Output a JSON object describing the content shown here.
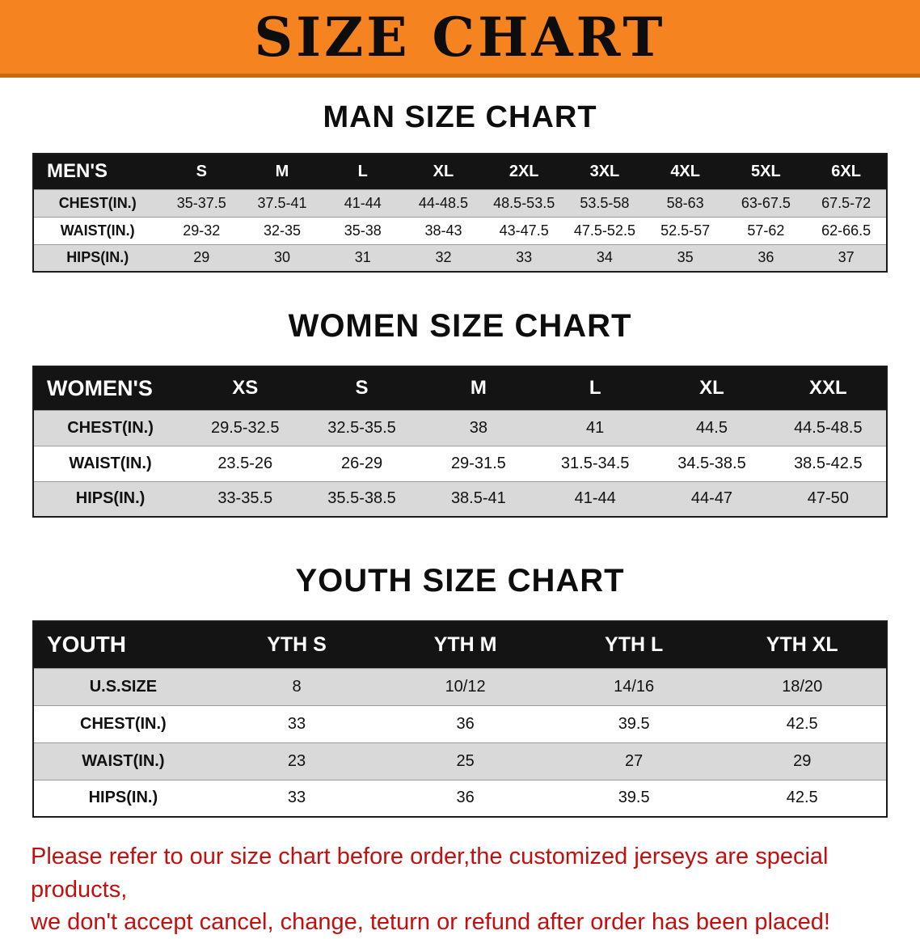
{
  "banner": {
    "title": "SIZE CHART"
  },
  "colors": {
    "banner_bg": "#F5831F",
    "banner_edge": "#C96A0F",
    "table_header_bg": "#141414",
    "row_alt_gray": "#D9D9D9",
    "note_red": "#C40F0F"
  },
  "sections": [
    {
      "id": "men",
      "heading": "MAN SIZE CHART",
      "table": {
        "label": "MEN'S",
        "columns": [
          "S",
          "M",
          "L",
          "XL",
          "2XL",
          "3XL",
          "4XL",
          "5XL",
          "6XL"
        ],
        "rows": [
          {
            "label": "CHEST(IN.)",
            "values": [
              "35-37.5",
              "37.5-41",
              "41-44",
              "44-48.5",
              "48.5-53.5",
              "53.5-58",
              "58-63",
              "63-67.5",
              "67.5-72"
            ]
          },
          {
            "label": "WAIST(IN.)",
            "values": [
              "29-32",
              "32-35",
              "35-38",
              "38-43",
              "43-47.5",
              "47.5-52.5",
              "52.5-57",
              "57-62",
              "62-66.5"
            ]
          },
          {
            "label": "HIPS(IN.)",
            "values": [
              "29",
              "30",
              "31",
              "32",
              "33",
              "34",
              "35",
              "36",
              "37"
            ]
          }
        ]
      }
    },
    {
      "id": "women",
      "heading": "WOMEN SIZE CHART",
      "table": {
        "label": "WOMEN'S",
        "columns": [
          "XS",
          "S",
          "M",
          "L",
          "XL",
          "XXL"
        ],
        "rows": [
          {
            "label": "CHEST(IN.)",
            "values": [
              "29.5-32.5",
              "32.5-35.5",
              "38",
              "41",
              "44.5",
              "44.5-48.5"
            ]
          },
          {
            "label": "WAIST(IN.)",
            "values": [
              "23.5-26",
              "26-29",
              "29-31.5",
              "31.5-34.5",
              "34.5-38.5",
              "38.5-42.5"
            ]
          },
          {
            "label": "HIPS(IN.)",
            "values": [
              "33-35.5",
              "35.5-38.5",
              "38.5-41",
              "41-44",
              "44-47",
              "47-50"
            ]
          }
        ]
      }
    },
    {
      "id": "youth",
      "heading": "YOUTH SIZE CHART",
      "table": {
        "label": "YOUTH",
        "columns": [
          "YTH S",
          "YTH M",
          "YTH L",
          "YTH XL"
        ],
        "rows": [
          {
            "label": "U.S.SIZE",
            "values": [
              "8",
              "10/12",
              "14/16",
              "18/20"
            ]
          },
          {
            "label": "CHEST(IN.)",
            "values": [
              "33",
              "36",
              "39.5",
              "42.5"
            ]
          },
          {
            "label": "WAIST(IN.)",
            "values": [
              "23",
              "25",
              "27",
              "29"
            ]
          },
          {
            "label": "HIPS(IN.)",
            "values": [
              "33",
              "36",
              "39.5",
              "42.5"
            ]
          }
        ]
      }
    }
  ],
  "footer": {
    "lines": [
      "Please refer to our size chart before order,the customized jerseys are special products,",
      "we don't accept cancel, change, teturn or refund after order has been placed!"
    ]
  }
}
